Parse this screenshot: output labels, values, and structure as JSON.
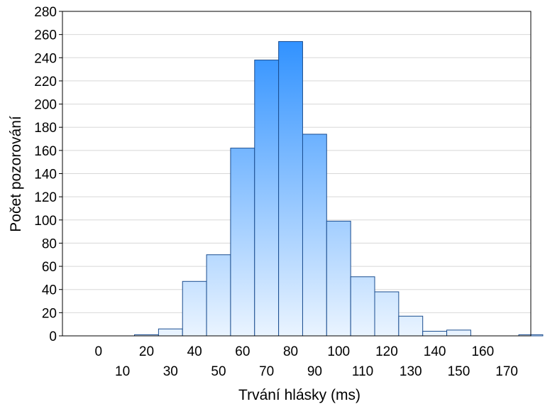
{
  "chart_data": {
    "type": "bar",
    "xlabel": "Trvání hlásky (ms)",
    "ylabel": "Počet pozorování",
    "ylim": [
      0,
      280
    ],
    "yticks": [
      0,
      20,
      40,
      60,
      80,
      100,
      120,
      140,
      160,
      180,
      200,
      220,
      240,
      260,
      280
    ],
    "xticks_row1": [
      "0",
      "20",
      "40",
      "60",
      "80",
      "100",
      "120",
      "140",
      "160"
    ],
    "xticks_row2": [
      "10",
      "30",
      "50",
      "70",
      "90",
      "110",
      "130",
      "150",
      "170"
    ],
    "xticks_row1_values": [
      0,
      20,
      40,
      60,
      80,
      100,
      120,
      140,
      160
    ],
    "xticks_row2_values": [
      10,
      30,
      50,
      70,
      90,
      110,
      130,
      150,
      170
    ],
    "xlim": [
      -15,
      180
    ],
    "bins": [
      {
        "start": 5,
        "end": 15,
        "value": 0
      },
      {
        "start": 15,
        "end": 25,
        "value": 1
      },
      {
        "start": 25,
        "end": 35,
        "value": 6
      },
      {
        "start": 35,
        "end": 45,
        "value": 47
      },
      {
        "start": 45,
        "end": 55,
        "value": 70
      },
      {
        "start": 55,
        "end": 65,
        "value": 162
      },
      {
        "start": 65,
        "end": 75,
        "value": 238
      },
      {
        "start": 75,
        "end": 85,
        "value": 254
      },
      {
        "start": 85,
        "end": 95,
        "value": 174
      },
      {
        "start": 95,
        "end": 105,
        "value": 99
      },
      {
        "start": 105,
        "end": 115,
        "value": 51
      },
      {
        "start": 115,
        "end": 125,
        "value": 38
      },
      {
        "start": 125,
        "end": 135,
        "value": 17
      },
      {
        "start": 135,
        "end": 145,
        "value": 4
      },
      {
        "start": 145,
        "end": 155,
        "value": 5
      },
      {
        "start": 155,
        "end": 165,
        "value": 0
      },
      {
        "start": 165,
        "end": 175,
        "value": 0
      },
      {
        "start": 175,
        "end": 185,
        "value": 1
      }
    ],
    "grid": true,
    "colors": {
      "bar_top": "#1e88ff",
      "bar_bottom": "#eaf4ff",
      "bar_edge": "#1a4d8f",
      "grid": "#d8d8d8"
    }
  }
}
